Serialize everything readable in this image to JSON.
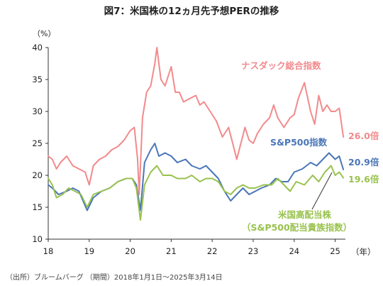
{
  "chart_data": {
    "type": "line",
    "title": "図7：米国株の12ヵ月先予想PERの推移",
    "y_unit": "（%）",
    "x_unit": "（年）",
    "source": "（出所）ブルームバーグ （期間）2018年1月1日～2025年3月14日",
    "xlim": [
      2018.0,
      2025.25
    ],
    "ylim": [
      10,
      40
    ],
    "x_ticks": [
      "18",
      "19",
      "20",
      "21",
      "22",
      "23",
      "24",
      "25"
    ],
    "y_ticks": [
      10,
      15,
      20,
      25,
      30,
      35,
      40
    ],
    "grid": false,
    "series": [
      {
        "name": "ナスダック総合指数",
        "end_label": "26.0倍",
        "color": "#f28a8c",
        "x": [
          2018.0,
          2018.1,
          2018.2,
          2018.3,
          2018.45,
          2018.6,
          2018.75,
          2018.9,
          2019.0,
          2019.1,
          2019.25,
          2019.4,
          2019.55,
          2019.7,
          2019.85,
          2020.0,
          2020.1,
          2020.18,
          2020.22,
          2020.3,
          2020.4,
          2020.5,
          2020.6,
          2020.65,
          2020.75,
          2020.85,
          2021.0,
          2021.1,
          2021.2,
          2021.3,
          2021.45,
          2021.6,
          2021.7,
          2021.8,
          2021.95,
          2022.1,
          2022.25,
          2022.4,
          2022.5,
          2022.6,
          2022.7,
          2022.8,
          2022.9,
          2023.0,
          2023.1,
          2023.25,
          2023.4,
          2023.5,
          2023.6,
          2023.75,
          2023.9,
          2024.0,
          2024.1,
          2024.25,
          2024.4,
          2024.5,
          2024.6,
          2024.7,
          2024.8,
          2024.9,
          2025.0,
          2025.1,
          2025.2
        ],
        "values": [
          23.0,
          22.5,
          21.0,
          22.0,
          23.0,
          21.5,
          21.0,
          20.5,
          18.5,
          21.5,
          22.5,
          23.0,
          24.0,
          24.5,
          25.5,
          27.0,
          27.5,
          22.5,
          17.0,
          29.0,
          33.0,
          34.0,
          37.5,
          40.0,
          35.0,
          34.0,
          37.0,
          33.0,
          33.0,
          31.5,
          32.0,
          32.5,
          31.0,
          31.5,
          30.0,
          28.5,
          26.0,
          27.5,
          25.0,
          22.5,
          25.0,
          27.5,
          25.5,
          25.0,
          26.5,
          28.0,
          29.0,
          31.0,
          29.0,
          27.5,
          29.0,
          29.5,
          32.0,
          34.5,
          30.0,
          28.0,
          32.5,
          30.0,
          31.0,
          30.0,
          30.0,
          30.5,
          26.0
        ]
      },
      {
        "name": "S&P500指数",
        "end_label": "20.9倍",
        "color": "#4a76b8",
        "x": [
          2018.0,
          2018.1,
          2018.25,
          2018.45,
          2018.6,
          2018.75,
          2018.95,
          2019.1,
          2019.3,
          2019.5,
          2019.7,
          2019.9,
          2020.05,
          2020.15,
          2020.25,
          2020.35,
          2020.5,
          2020.6,
          2020.7,
          2020.85,
          2021.0,
          2021.15,
          2021.35,
          2021.5,
          2021.7,
          2021.85,
          2022.0,
          2022.15,
          2022.3,
          2022.45,
          2022.6,
          2022.75,
          2022.9,
          2023.05,
          2023.2,
          2023.4,
          2023.55,
          2023.7,
          2023.85,
          2024.0,
          2024.2,
          2024.4,
          2024.55,
          2024.7,
          2024.85,
          2025.0,
          2025.1,
          2025.2
        ],
        "values": [
          18.5,
          18.0,
          17.0,
          17.5,
          18.0,
          17.5,
          14.5,
          16.5,
          17.5,
          18.0,
          19.0,
          19.5,
          19.5,
          18.5,
          14.5,
          22.0,
          24.0,
          25.0,
          23.0,
          23.5,
          23.0,
          22.0,
          22.5,
          21.5,
          21.0,
          21.5,
          20.5,
          19.5,
          17.5,
          16.0,
          17.0,
          18.0,
          17.0,
          17.5,
          18.0,
          18.5,
          19.5,
          19.0,
          19.0,
          20.5,
          21.0,
          22.0,
          21.5,
          22.5,
          23.5,
          22.5,
          23.0,
          20.9
        ]
      },
      {
        "name": "米国高配当株（S&P500配当貴族指数）",
        "end_label": "19.6倍",
        "color": "#99c24e",
        "x": [
          2018.0,
          2018.1,
          2018.2,
          2018.35,
          2018.5,
          2018.65,
          2018.8,
          2018.95,
          2019.1,
          2019.3,
          2019.5,
          2019.7,
          2019.9,
          2020.05,
          2020.15,
          2020.25,
          2020.35,
          2020.5,
          2020.65,
          2020.8,
          2021.0,
          2021.15,
          2021.35,
          2021.5,
          2021.7,
          2021.85,
          2022.0,
          2022.15,
          2022.3,
          2022.45,
          2022.6,
          2022.75,
          2022.9,
          2023.05,
          2023.25,
          2023.45,
          2023.6,
          2023.75,
          2023.9,
          2024.05,
          2024.25,
          2024.45,
          2024.6,
          2024.75,
          2024.9,
          2025.0,
          2025.1,
          2025.2
        ],
        "values": [
          19.5,
          18.5,
          16.5,
          17.0,
          18.0,
          17.5,
          17.0,
          15.0,
          17.0,
          17.5,
          18.0,
          19.0,
          19.5,
          19.5,
          18.0,
          13.0,
          18.5,
          20.5,
          21.5,
          20.0,
          20.0,
          19.5,
          19.5,
          20.0,
          19.0,
          19.5,
          19.5,
          19.0,
          17.5,
          17.0,
          18.0,
          18.5,
          18.0,
          18.0,
          18.5,
          18.5,
          19.5,
          18.5,
          17.5,
          19.0,
          18.5,
          20.0,
          19.0,
          20.5,
          21.5,
          20.0,
          20.5,
          19.6
        ]
      }
    ],
    "label_texts": {
      "nasdaq": "ナスダック総合指数",
      "sp500": "S&P500指数",
      "div_line1": "米国高配当株",
      "div_line2": "（S&P500配当貴族指数）"
    }
  }
}
